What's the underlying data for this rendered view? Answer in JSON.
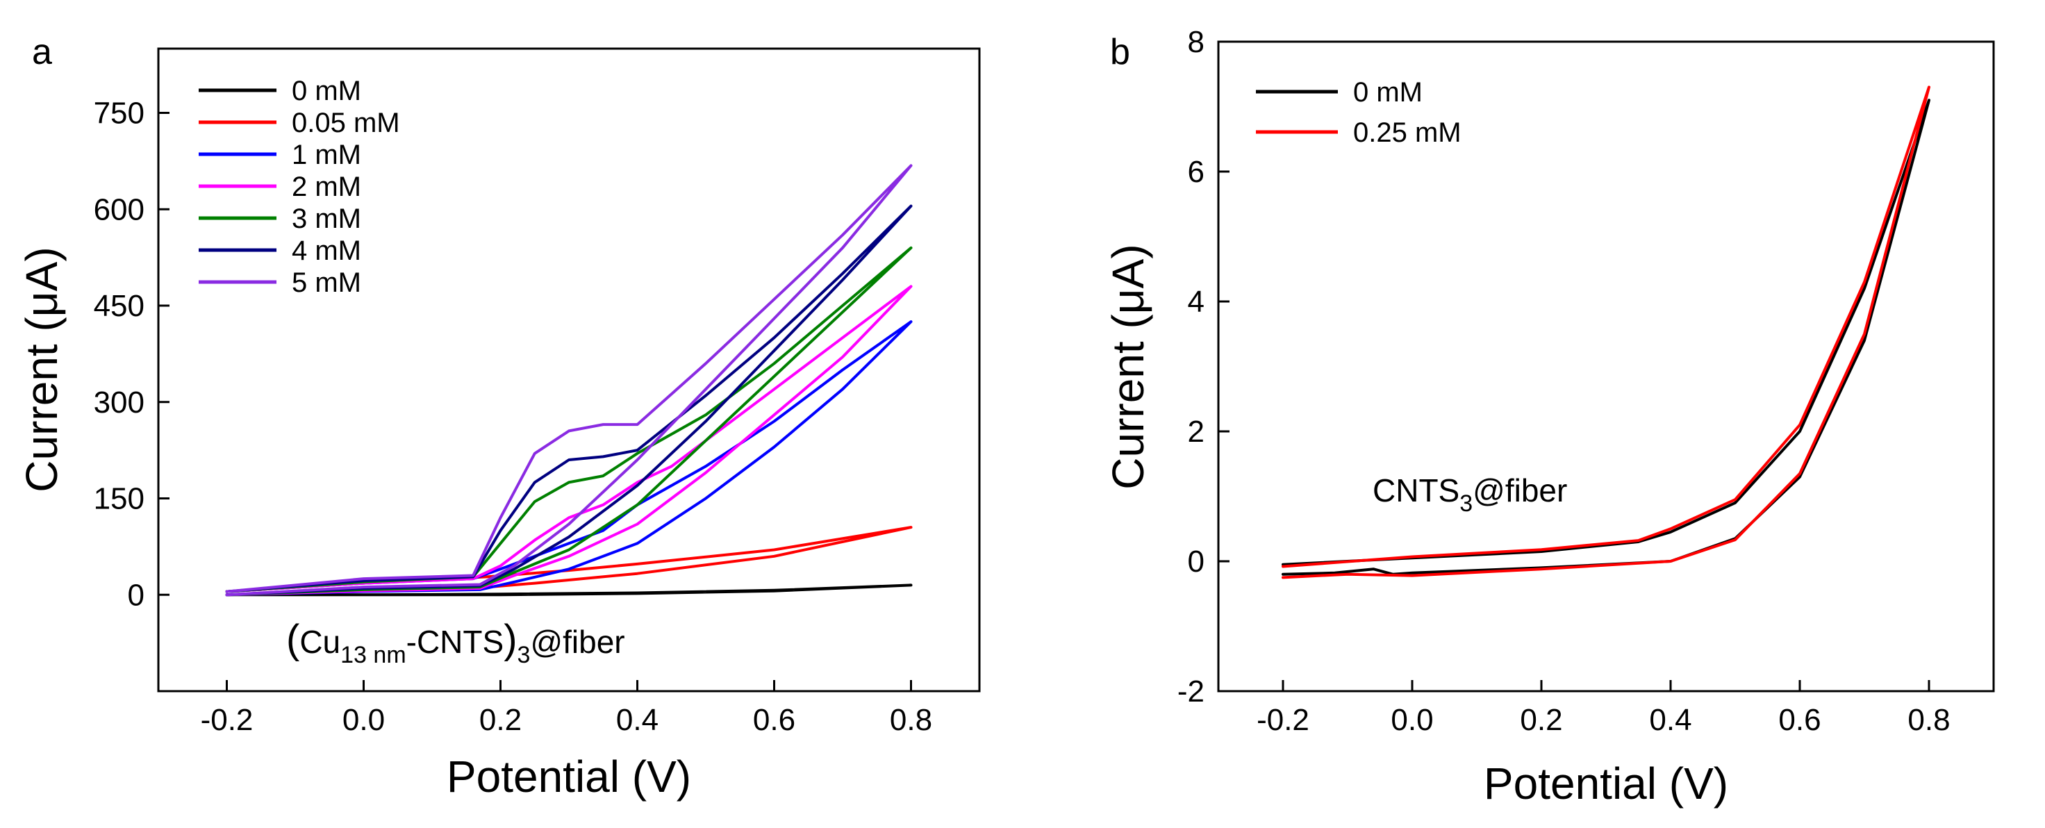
{
  "chart_data": [
    {
      "type": "line",
      "panel_label": "a",
      "xlabel": "Potential (V)",
      "ylabel": "Current (μA)",
      "xlim": [
        -0.3,
        0.9
      ],
      "ylim": [
        -150,
        850
      ],
      "xticks": [
        -0.2,
        0.0,
        0.2,
        0.4,
        0.6,
        0.8
      ],
      "xtick_labels": [
        "-0.2",
        "0.0",
        "0.2",
        "0.4",
        "0.6",
        "0.8"
      ],
      "yticks": [
        0,
        150,
        300,
        450,
        600,
        750
      ],
      "ytick_labels": [
        "0",
        "150",
        "300",
        "450",
        "600",
        "750"
      ],
      "legend_position": "top-left",
      "annotation": {
        "open": "(",
        "base": "Cu",
        "sub": "13 nm",
        "mid": "-CNTS",
        "close": ")",
        "sub2": "3",
        "tail": "@fiber"
      },
      "series": [
        {
          "name": "0 mM",
          "color": "#000000",
          "x": [
            -0.2,
            0.0,
            0.2,
            0.4,
            0.6,
            0.8,
            0.6,
            0.4,
            0.2,
            0.0,
            -0.2
          ],
          "y": [
            0,
            0,
            0,
            2,
            6,
            15,
            7,
            3,
            1,
            0,
            0
          ]
        },
        {
          "name": "0.05 mM",
          "color": "#ff0000",
          "x": [
            -0.2,
            0.0,
            0.16,
            0.25,
            0.4,
            0.6,
            0.8,
            0.6,
            0.4,
            0.3,
            0.18,
            0.0,
            -0.2
          ],
          "y": [
            0,
            6,
            10,
            18,
            33,
            60,
            105,
            70,
            48,
            38,
            28,
            18,
            5
          ]
        },
        {
          "name": "1 mM",
          "color": "#0000ff",
          "x": [
            -0.2,
            0.0,
            0.17,
            0.22,
            0.3,
            0.4,
            0.5,
            0.6,
            0.7,
            0.8,
            0.7,
            0.6,
            0.5,
            0.4,
            0.35,
            0.3,
            0.25,
            0.2,
            0.16,
            0.0,
            -0.2
          ],
          "y": [
            0,
            5,
            8,
            20,
            40,
            80,
            150,
            230,
            320,
            425,
            350,
            270,
            200,
            140,
            100,
            80,
            60,
            40,
            25,
            18,
            5
          ]
        },
        {
          "name": "2 mM",
          "color": "#ff00ff",
          "x": [
            -0.2,
            0.0,
            0.17,
            0.22,
            0.3,
            0.4,
            0.5,
            0.6,
            0.7,
            0.8,
            0.7,
            0.6,
            0.5,
            0.45,
            0.4,
            0.35,
            0.3,
            0.25,
            0.2,
            0.16,
            0.0,
            -0.2
          ],
          "y": [
            0,
            6,
            10,
            30,
            60,
            110,
            190,
            280,
            370,
            480,
            400,
            320,
            240,
            200,
            175,
            140,
            120,
            85,
            45,
            25,
            18,
            5
          ]
        },
        {
          "name": "3 mM",
          "color": "#008000",
          "x": [
            -0.2,
            0.0,
            0.17,
            0.22,
            0.3,
            0.4,
            0.5,
            0.6,
            0.7,
            0.8,
            0.7,
            0.6,
            0.5,
            0.4,
            0.35,
            0.3,
            0.25,
            0.2,
            0.16,
            0.0,
            -0.2
          ],
          "y": [
            0,
            8,
            12,
            35,
            70,
            140,
            240,
            340,
            440,
            540,
            450,
            360,
            280,
            220,
            185,
            175,
            145,
            80,
            28,
            20,
            5
          ]
        },
        {
          "name": "4 mM",
          "color": "#000080",
          "x": [
            -0.2,
            0.0,
            0.17,
            0.22,
            0.3,
            0.4,
            0.5,
            0.6,
            0.7,
            0.8,
            0.7,
            0.6,
            0.5,
            0.4,
            0.35,
            0.3,
            0.25,
            0.2,
            0.16,
            0.0,
            -0.2
          ],
          "y": [
            0,
            10,
            14,
            40,
            90,
            170,
            270,
            380,
            490,
            605,
            500,
            400,
            310,
            225,
            215,
            210,
            175,
            100,
            28,
            22,
            5
          ]
        },
        {
          "name": "5 mM",
          "color": "#8a2be2",
          "x": [
            -0.2,
            0.0,
            0.17,
            0.22,
            0.3,
            0.4,
            0.5,
            0.6,
            0.7,
            0.8,
            0.7,
            0.6,
            0.5,
            0.4,
            0.35,
            0.3,
            0.25,
            0.2,
            0.16,
            0.0,
            -0.2
          ],
          "y": [
            0,
            12,
            16,
            45,
            110,
            210,
            320,
            430,
            540,
            668,
            560,
            460,
            360,
            265,
            265,
            255,
            220,
            120,
            30,
            25,
            5
          ]
        }
      ]
    },
    {
      "type": "line",
      "panel_label": "b",
      "xlabel": "Potential (V)",
      "ylabel": "Current (μA)",
      "xlim": [
        -0.3,
        0.9
      ],
      "ylim": [
        -2,
        8
      ],
      "xticks": [
        -0.2,
        0.0,
        0.2,
        0.4,
        0.6,
        0.8
      ],
      "xtick_labels": [
        "-0.2",
        "0.0",
        "0.2",
        "0.4",
        "0.6",
        "0.8"
      ],
      "yticks": [
        -2,
        0,
        2,
        4,
        6,
        8
      ],
      "ytick_labels": [
        "-2",
        "0",
        "2",
        "4",
        "6",
        "8"
      ],
      "legend_position": "top-left",
      "annotation": {
        "base": "CNTS",
        "sub": "3",
        "tail": "@fiber"
      },
      "series": [
        {
          "name": "0 mM",
          "color": "#000000",
          "x": [
            -0.2,
            -0.12,
            -0.06,
            -0.03,
            0.0,
            0.2,
            0.4,
            0.5,
            0.6,
            0.7,
            0.8,
            0.7,
            0.6,
            0.5,
            0.4,
            0.35,
            0.2,
            0.0,
            -0.2
          ],
          "y": [
            -0.2,
            -0.18,
            -0.12,
            -0.2,
            -0.18,
            -0.1,
            0.0,
            0.35,
            1.3,
            3.4,
            7.1,
            4.2,
            2.0,
            0.9,
            0.45,
            0.3,
            0.15,
            0.05,
            -0.05
          ]
        },
        {
          "name": "0.25 mM",
          "color": "#ff0000",
          "x": [
            -0.2,
            -0.1,
            0.0,
            0.2,
            0.4,
            0.5,
            0.6,
            0.7,
            0.8,
            0.7,
            0.6,
            0.5,
            0.4,
            0.35,
            0.2,
            0.0,
            -0.2
          ],
          "y": [
            -0.25,
            -0.2,
            -0.22,
            -0.12,
            0.0,
            0.33,
            1.35,
            3.5,
            7.3,
            4.3,
            2.1,
            0.95,
            0.5,
            0.32,
            0.18,
            0.07,
            -0.08
          ]
        }
      ]
    }
  ]
}
